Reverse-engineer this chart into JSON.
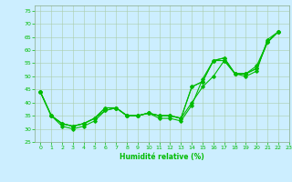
{
  "xlabel": "Humidité relative (%)",
  "xlim": [
    -0.5,
    23
  ],
  "ylim": [
    25,
    77
  ],
  "yticks": [
    25,
    30,
    35,
    40,
    45,
    50,
    55,
    60,
    65,
    70,
    75
  ],
  "xticks": [
    0,
    1,
    2,
    3,
    4,
    5,
    6,
    7,
    8,
    9,
    10,
    11,
    12,
    13,
    14,
    15,
    16,
    17,
    18,
    19,
    20,
    21,
    22,
    23
  ],
  "bg_color": "#cceeff",
  "grid_color": "#aaccaa",
  "line_color": "#00bb00",
  "lines": [
    [
      44,
      35,
      31,
      30,
      31,
      33,
      37,
      38,
      35,
      35,
      36,
      34,
      34,
      33,
      39,
      49,
      56,
      56,
      51,
      50,
      52,
      64,
      67
    ],
    [
      44,
      35,
      32,
      31,
      32,
      34,
      38,
      38,
      35,
      35,
      36,
      35,
      35,
      34,
      46,
      48,
      56,
      57,
      51,
      51,
      53,
      63,
      67
    ],
    [
      44,
      35,
      32,
      31,
      32,
      34,
      38,
      38,
      35,
      35,
      36,
      35,
      35,
      34,
      46,
      48,
      56,
      57,
      51,
      51,
      53,
      63,
      67
    ],
    [
      44,
      35,
      32,
      31,
      32,
      34,
      37,
      38,
      35,
      35,
      36,
      35,
      35,
      34,
      40,
      46,
      50,
      56,
      51,
      51,
      54,
      63,
      67
    ]
  ],
  "marker": "D",
  "marker_size": 1.8,
  "line_width": 0.8,
  "tick_fontsize": 4.5,
  "xlabel_fontsize": 5.5
}
